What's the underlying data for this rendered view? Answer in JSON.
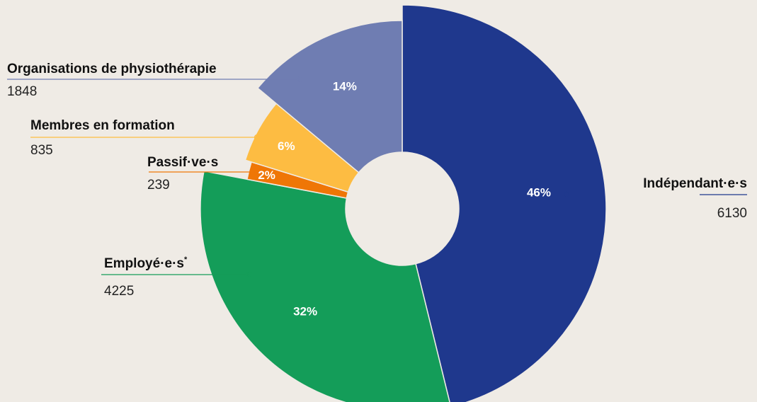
{
  "chart_data": {
    "type": "pie",
    "donut": true,
    "legend": "none",
    "slices": [
      {
        "label": "Indépendant·e·s",
        "value": 6130,
        "percent_label": "46%",
        "color": "#1f388d"
      },
      {
        "label": "Employé·e·s",
        "label_sup": "*",
        "value": 4225,
        "percent_label": "32%",
        "color": "#149d59"
      },
      {
        "label": "Passif·ve·s",
        "value": 239,
        "percent_label": "2%",
        "color": "#ef7606"
      },
      {
        "label": "Membres en formation",
        "value": 835,
        "percent_label": "6%",
        "color": "#fdbc42"
      },
      {
        "label": "Organisations de physiothérapie",
        "value": 1848,
        "percent_label": "14%",
        "color": "#6f7db2"
      }
    ]
  }
}
